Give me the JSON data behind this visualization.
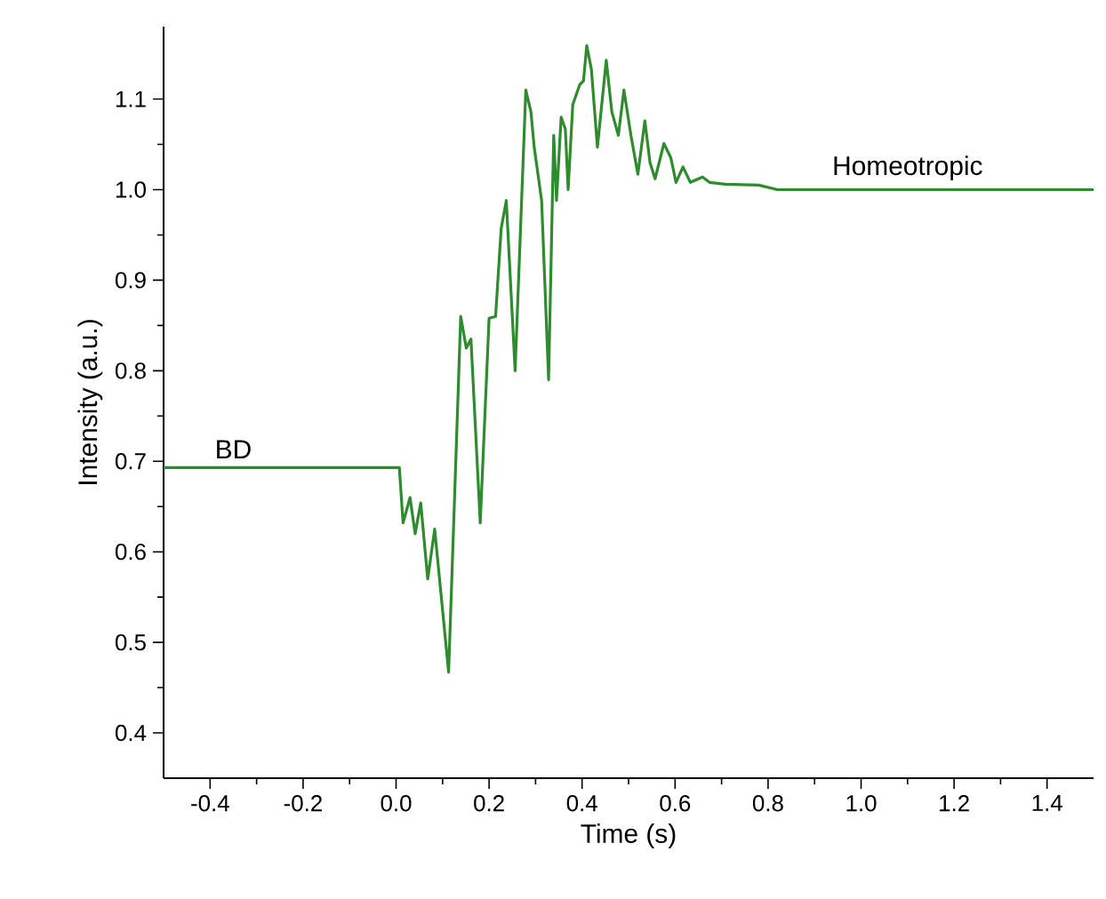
{
  "chart_data": {
    "type": "line",
    "xlabel": "Time (s)",
    "ylabel": "Intensity (a.u.)",
    "x": [
      -0.5,
      -0.3,
      -0.1,
      0.007,
      0.015,
      0.03,
      0.041,
      0.053,
      0.068,
      0.083,
      0.113,
      0.139,
      0.151,
      0.161,
      0.181,
      0.2,
      0.214,
      0.226,
      0.237,
      0.256,
      0.279,
      0.29,
      0.297,
      0.313,
      0.328,
      0.339,
      0.345,
      0.355,
      0.364,
      0.37,
      0.38,
      0.395,
      0.403,
      0.41,
      0.42,
      0.433,
      0.452,
      0.464,
      0.478,
      0.49,
      0.505,
      0.52,
      0.535,
      0.546,
      0.557,
      0.576,
      0.591,
      0.602,
      0.617,
      0.633,
      0.659,
      0.674,
      0.708,
      0.78,
      0.82,
      1.0,
      1.2,
      1.5
    ],
    "series": [
      {
        "color": "#2e8b2e",
        "values": [
          0.693,
          0.693,
          0.693,
          0.693,
          0.632,
          0.66,
          0.62,
          0.654,
          0.57,
          0.625,
          0.467,
          0.86,
          0.825,
          0.835,
          0.632,
          0.858,
          0.86,
          0.957,
          0.988,
          0.8,
          1.11,
          1.086,
          1.047,
          0.988,
          0.79,
          1.06,
          0.988,
          1.08,
          1.067,
          1.0,
          1.094,
          1.116,
          1.12,
          1.159,
          1.133,
          1.047,
          1.143,
          1.086,
          1.06,
          1.11,
          1.06,
          1.017,
          1.076,
          1.03,
          1.012,
          1.051,
          1.035,
          1.008,
          1.025,
          1.008,
          1.014,
          1.008,
          1.006,
          1.005,
          1.0,
          1.0,
          1.0,
          1.0
        ]
      }
    ],
    "annotations": [
      {
        "text": "BD",
        "x": -0.35,
        "y": 0.693
      },
      {
        "text": "Homeotropic",
        "x": 1.1,
        "y": 1.0
      }
    ],
    "xlim": [
      -0.5,
      1.5
    ],
    "ylim": [
      0.35,
      1.18
    ],
    "xticks": [
      -0.4,
      -0.2,
      {
        "value": 0,
        "label": "0.0"
      },
      0.2,
      0.4,
      0.6,
      0.8,
      {
        "value": 1,
        "label": "1.0"
      },
      1.2,
      1.4
    ],
    "yticks": [
      0.4,
      0.5,
      0.6,
      0.7,
      0.8,
      0.9,
      {
        "value": 1,
        "label": "1.0"
      },
      1.1
    ],
    "grid": false,
    "marker": "none",
    "line_style": "solid"
  }
}
